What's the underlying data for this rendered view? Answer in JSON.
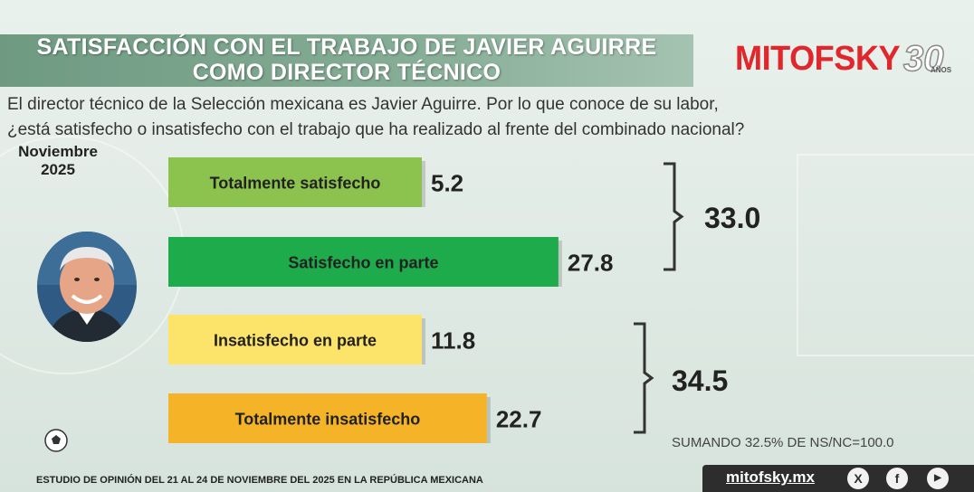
{
  "title_line1": "SATISFACCIÓN CON EL TRABAJO DE JAVIER AGUIRRE",
  "title_line2": "COMO DIRECTOR TÉCNICO",
  "logo": {
    "brand": "MITOFSKY",
    "anniversary": "30",
    "anniversary_suffix": "AÑOS"
  },
  "question_line1": "El director técnico de la Selección mexicana es Javier Aguirre. Por lo que conoce de su labor,",
  "question_line2": "¿está satisfecho o insatisfecho con el trabajo que ha realizado al frente del combinado nacional?",
  "date_month": "Noviembre",
  "date_year": "2025",
  "note": "SUMANDO 32.5% DE NS/NC=100.0",
  "footer": "ESTUDIO DE OPINIÓN DEL 21 AL 24 DE NOVIEMBRE DEL 2025 EN LA REPÚBLICA MEXICANA",
  "social": {
    "site": "mitofsky.mx",
    "icons": [
      "x-icon",
      "facebook-icon",
      "youtube-icon"
    ],
    "x_glyph": "X",
    "facebook_glyph": "f",
    "youtube_glyph": "▶"
  },
  "chart_data": {
    "type": "bar",
    "orientation": "horizontal",
    "categories": [
      "Totalmente satisfecho",
      "Satisfecho en parte",
      "Insatisfecho en parte",
      "Totalmente insatisfecho"
    ],
    "values": [
      5.2,
      27.8,
      11.8,
      22.7
    ],
    "value_labels": [
      "5.2",
      "27.8",
      "11.8",
      "22.7"
    ],
    "colors": [
      "#8cc34e",
      "#1eab4b",
      "#fce36a",
      "#f5b428"
    ],
    "groups": [
      {
        "label": "33.0",
        "members": [
          0,
          1
        ]
      },
      {
        "label": "34.5",
        "members": [
          2,
          3
        ]
      }
    ],
    "xlim": [
      0,
      40
    ]
  }
}
